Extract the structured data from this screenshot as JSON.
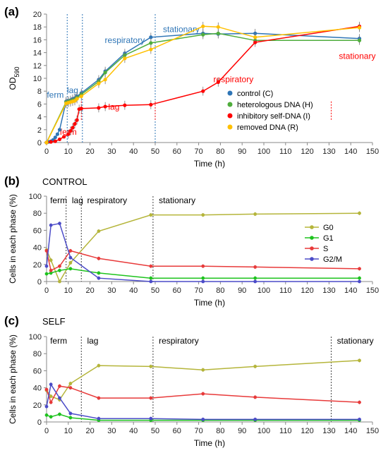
{
  "chart_data": [
    {
      "panel_label": "(a)",
      "type": "line",
      "title": "",
      "xlabel": "Time (h)",
      "ylabel": "OD",
      "ylabel_sub": "590",
      "xlim": [
        0,
        150
      ],
      "ylim": [
        0,
        20
      ],
      "xticks": [
        0,
        10,
        20,
        30,
        40,
        50,
        60,
        70,
        80,
        90,
        100,
        110,
        120,
        130,
        140,
        150
      ],
      "yticks": [
        0,
        2,
        4,
        6,
        8,
        10,
        12,
        14,
        16,
        18,
        20
      ],
      "grid": false,
      "legend_position": "bottom-right",
      "series": [
        {
          "name": "control (C)",
          "color": "#2e75b6",
          "x": [
            0,
            1,
            2,
            3,
            4,
            5,
            6,
            9,
            10,
            11,
            12,
            13,
            14,
            16,
            24,
            27,
            36,
            48,
            72,
            79,
            96,
            144
          ],
          "y": [
            0,
            0.1,
            0.2,
            0.4,
            0.8,
            1.3,
            2.0,
            6.4,
            6.5,
            6.6,
            6.8,
            6.9,
            7.2,
            7.7,
            9.8,
            11.1,
            13.9,
            16.4,
            17.0,
            16.9,
            17.0,
            16.2
          ]
        },
        {
          "name": "heterologous DNA (H)",
          "color": "#4fad3c",
          "x": [
            0,
            9,
            10,
            11,
            12,
            13,
            14,
            16,
            24,
            27,
            36,
            48,
            72,
            79,
            96,
            144
          ],
          "y": [
            0,
            6.3,
            6.4,
            6.5,
            6.6,
            6.7,
            7.0,
            7.5,
            9.5,
            10.9,
            13.6,
            15.5,
            16.8,
            17.0,
            15.9,
            15.9
          ]
        },
        {
          "name": "inhibitory self-DNA (I)",
          "color": "#ff0000",
          "x": [
            0,
            2,
            4,
            6,
            8,
            10,
            11,
            12,
            13,
            14,
            15,
            16,
            24,
            27,
            36,
            48,
            72,
            79,
            96,
            144
          ],
          "y": [
            0,
            0.1,
            0.2,
            0.5,
            0.9,
            1.3,
            1.8,
            2.3,
            2.9,
            3.5,
            5.2,
            5.3,
            5.4,
            5.6,
            5.8,
            5.9,
            8.0,
            9.4,
            15.6,
            18.1
          ]
        },
        {
          "name": "removed DNA (R)",
          "color": "#ffc000",
          "x": [
            0,
            9,
            10,
            11,
            12,
            13,
            14,
            16,
            24,
            27,
            36,
            48,
            72,
            79,
            96,
            144
          ],
          "y": [
            0,
            6.1,
            6.2,
            6.3,
            6.4,
            6.5,
            6.8,
            7.2,
            9.2,
            9.8,
            13.1,
            14.5,
            18.1,
            18.0,
            16.4,
            17.9
          ]
        }
      ],
      "annotations": [
        {
          "text": "ferm",
          "color": "#2e75b6",
          "x": 4,
          "y": 7.0
        },
        {
          "text": "lag",
          "color": "#2e75b6",
          "x": 12,
          "y": 7.7
        },
        {
          "text": "respiratory",
          "color": "#2e75b6",
          "x": 36,
          "y": 15.5
        },
        {
          "text": "stationary",
          "color": "#2e75b6",
          "x": 62,
          "y": 17.2
        },
        {
          "text": "ferm",
          "color": "#ff0000",
          "x": 10,
          "y": 1.2
        },
        {
          "text": "lag",
          "color": "#ff0000",
          "x": 31,
          "y": 5.1
        },
        {
          "text": "respiratory",
          "color": "#ff0000",
          "x": 86,
          "y": 9.4
        },
        {
          "text": "stationary",
          "color": "#ff0000",
          "x": 143,
          "y": 13.0
        }
      ]
    },
    {
      "panel_label": "(b)",
      "type": "line",
      "title": "CONTROL",
      "xlabel": "Time (h)",
      "ylabel": "Cells in each phase (%)",
      "xlim": [
        0,
        150
      ],
      "ylim": [
        0,
        100
      ],
      "xticks": [
        0,
        10,
        20,
        30,
        40,
        50,
        60,
        70,
        80,
        90,
        100,
        110,
        120,
        130,
        140,
        150
      ],
      "yticks": [
        0,
        20,
        40,
        60,
        80,
        100
      ],
      "grid": false,
      "legend_position": "right",
      "phases": [
        {
          "text": "ferm"
        },
        {
          "text": "lag"
        },
        {
          "text": "respiratory"
        },
        {
          "text": "stationary"
        }
      ],
      "series": [
        {
          "name": "G0",
          "color": "#b5b53a",
          "x": [
            0,
            2,
            6,
            11,
            24,
            48,
            72,
            96,
            144
          ],
          "y": [
            37,
            25,
            0,
            22,
            59,
            78,
            78,
            79,
            80
          ]
        },
        {
          "name": "G1",
          "color": "#1ec31e",
          "x": [
            0,
            2,
            6,
            11,
            24,
            48,
            72,
            96,
            144
          ],
          "y": [
            9,
            10,
            13,
            15,
            10,
            4,
            4,
            4,
            4
          ]
        },
        {
          "name": "S",
          "color": "#e83a3a",
          "x": [
            0,
            2,
            6,
            11,
            24,
            48,
            72,
            96,
            144
          ],
          "y": [
            36,
            13,
            18,
            36,
            27,
            18,
            18,
            17,
            15
          ]
        },
        {
          "name": "G2/M",
          "color": "#4b4bc8",
          "x": [
            0,
            2,
            6,
            11,
            24,
            48,
            72,
            96,
            144
          ],
          "y": [
            18,
            66,
            68,
            28,
            4,
            0,
            0,
            0,
            0
          ]
        }
      ]
    },
    {
      "panel_label": "(c)",
      "type": "line",
      "title": "SELF",
      "xlabel": "Time (h)",
      "ylabel": "Cells in each phase (%)",
      "xlim": [
        0,
        150
      ],
      "ylim": [
        0,
        100
      ],
      "xticks": [
        0,
        10,
        20,
        30,
        40,
        50,
        60,
        70,
        80,
        90,
        100,
        110,
        120,
        130,
        140,
        150
      ],
      "yticks": [
        0,
        20,
        40,
        60,
        80,
        100
      ],
      "grid": false,
      "phases": [
        {
          "text": "ferm"
        },
        {
          "text": "lag"
        },
        {
          "text": "respiratory"
        },
        {
          "text": "stationary"
        }
      ],
      "series": [
        {
          "name": "G0",
          "color": "#b5b53a",
          "x": [
            0,
            2,
            6,
            11,
            24,
            48,
            72,
            96,
            144
          ],
          "y": [
            37,
            30,
            26,
            45,
            66,
            65,
            61,
            65,
            72
          ]
        },
        {
          "name": "G1",
          "color": "#1ec31e",
          "x": [
            0,
            2,
            6,
            11,
            24,
            48,
            72,
            96,
            144
          ],
          "y": [
            8,
            6,
            9,
            5,
            2,
            2,
            2,
            2,
            2
          ]
        },
        {
          "name": "S",
          "color": "#e83a3a",
          "x": [
            0,
            2,
            6,
            11,
            24,
            48,
            72,
            96,
            144
          ],
          "y": [
            38,
            23,
            42,
            40,
            28,
            28,
            33,
            29,
            23
          ]
        },
        {
          "name": "G2/M",
          "color": "#4b4bc8",
          "x": [
            0,
            2,
            6,
            11,
            24,
            48,
            72,
            96,
            144
          ],
          "y": [
            18,
            44,
            28,
            10,
            4,
            4,
            3,
            3,
            3
          ]
        }
      ]
    }
  ]
}
